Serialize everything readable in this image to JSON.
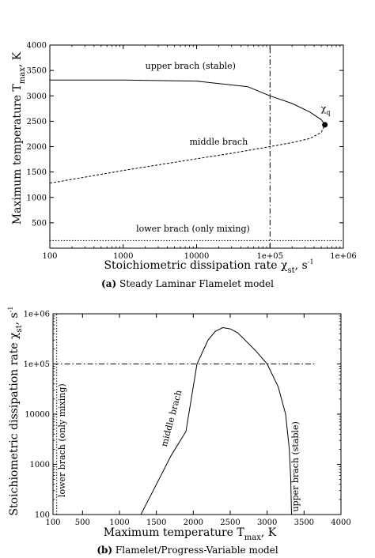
{
  "chart_data": [
    {
      "type": "line",
      "caption_tag": "(a)",
      "caption_text": "Steady Laminar Flamelet model",
      "xlabel": "Stoichiometric dissipation rate χ",
      "xlabel_sub": "st",
      "xlabel_unit": ", s",
      "xlabel_sup": "-1",
      "ylabel": "Maximum temperature T",
      "ylabel_sub": "max",
      "ylabel_unit": ", K",
      "xscale": "log",
      "xlim": [
        100,
        1000000
      ],
      "ylim": [
        0,
        4000
      ],
      "xticks": [
        100,
        1000,
        10000,
        100000,
        1000000
      ],
      "xtick_labels": [
        "100",
        "1000",
        "10000",
        "1e+05",
        "1e+06"
      ],
      "yticks": [
        500,
        1000,
        1500,
        2000,
        2500,
        3000,
        3500,
        4000
      ],
      "ytick_labels": [
        "500",
        "1000",
        "1500",
        "2000",
        "2500",
        "3000",
        "3500",
        "4000"
      ],
      "series": [
        {
          "style": "solid",
          "x": [
            100,
            1000,
            10000,
            50000,
            100000,
            200000,
            350000,
            500000,
            560000
          ],
          "y": [
            3310,
            3310,
            3290,
            3180,
            3000,
            2850,
            2680,
            2530,
            2430
          ]
        },
        {
          "style": "dashed",
          "x": [
            100,
            300,
            1000,
            3000,
            10000,
            30000,
            100000,
            200000,
            350000,
            500000,
            560000
          ],
          "y": [
            1280,
            1400,
            1530,
            1640,
            1760,
            1870,
            2000,
            2080,
            2160,
            2280,
            2430
          ]
        },
        {
          "style": "dotted",
          "x": [
            100,
            1000000
          ],
          "y": [
            150,
            150
          ]
        },
        {
          "style": "dashdot",
          "x": [
            100000,
            100000
          ],
          "y": [
            0,
            4000
          ]
        }
      ],
      "marker": {
        "x": 560000,
        "y": 2430,
        "label": "χ",
        "label_sub": "q"
      },
      "annotations": [
        {
          "text": "upper brach (stable)",
          "x": 2000,
          "y": 3530
        },
        {
          "text": "middle brach",
          "x": 8000,
          "y": 2040
        },
        {
          "text": "lower brach (only mixing)",
          "x": 1500,
          "y": 330
        }
      ]
    },
    {
      "type": "line",
      "caption_tag": "(b)",
      "caption_text": "Flamelet/Progress-Variable model",
      "xlabel": "Maximum temperature T",
      "xlabel_sub": "max",
      "xlabel_unit": ", K",
      "ylabel": "Stoichiometric dissipation rate χ",
      "ylabel_sub": "st",
      "ylabel_unit": ", s",
      "ylabel_sup": "-1",
      "yscale": "log",
      "xlim": [
        100,
        4000
      ],
      "ylim": [
        100,
        1000000
      ],
      "xticks": [
        100,
        500,
        1000,
        1500,
        2000,
        2500,
        3000,
        3500,
        4000
      ],
      "xtick_labels": [
        "100",
        "500",
        "1000",
        "1500",
        "2000",
        "2500",
        "3000",
        "3500",
        "4000"
      ],
      "yticks": [
        100,
        1000,
        10000,
        100000,
        1000000
      ],
      "ytick_labels": [
        "100",
        "1000",
        "10000",
        "1e+05",
        "1e+06"
      ],
      "series": [
        {
          "style": "solid",
          "x": [
            1290,
            1500,
            1700,
            1900,
            2050,
            2200,
            2300,
            2400,
            2500,
            2600,
            2700,
            2850,
            3000,
            3150,
            3250,
            3300,
            3320,
            3330
          ],
          "y": [
            100,
            400,
            1500,
            4500,
            100000,
            300000,
            450000,
            530000,
            500000,
            420000,
            300000,
            180000,
            100000,
            35000,
            10000,
            2000,
            500,
            100
          ]
        },
        {
          "style": "dotted",
          "x": [
            150,
            150
          ],
          "y": [
            100,
            1000000
          ]
        },
        {
          "style": "dashdot",
          "x": [
            100,
            3650
          ],
          "y": [
            100000,
            100000
          ]
        }
      ],
      "annotations": [
        {
          "text": "lower brach (only mixing)",
          "x": 260,
          "y": 3000,
          "rotate": -90
        },
        {
          "text": "middle brach",
          "x": 1740,
          "y": 8000,
          "rotate": -75
        },
        {
          "text": "upper brach (stable)",
          "x": 3420,
          "y": 900,
          "rotate": -90
        }
      ]
    }
  ]
}
